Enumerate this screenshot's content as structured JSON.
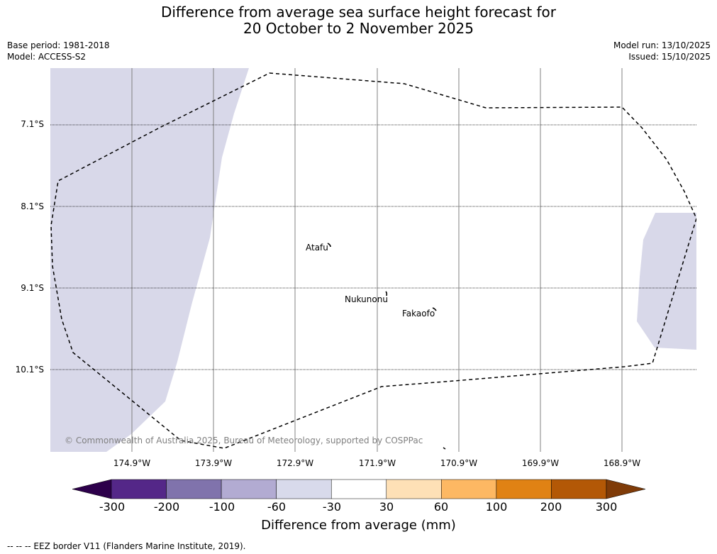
{
  "title": {
    "line1": "Difference from average sea surface height forecast for",
    "line2": "20 October to 2 November 2025"
  },
  "meta": {
    "base_period": "Base period: 1981-2018",
    "model": "Model: ACCESS-S2",
    "model_run": "Model run: 13/10/2025",
    "issued": "Issued: 15/10/2025"
  },
  "map": {
    "lat_labels": [
      "7.1°S",
      "8.1°S",
      "9.1°S",
      "10.1°S"
    ],
    "lon_labels": [
      "174.9°W",
      "173.9°W",
      "172.9°W",
      "171.9°W",
      "170.9°W",
      "169.9°W",
      "168.9°W"
    ],
    "places": [
      "Atafu",
      "Nukunonu",
      "Fakaofo"
    ],
    "copyright": "© Commonwealth of Australia 2025, Bureau of Meteorology, supported by COSPPac",
    "anomaly_fill_color": "#d8d8e9",
    "eez_color": "#000000"
  },
  "colorbar": {
    "label": "Difference from average (mm)",
    "ticks": [
      "-300",
      "-200",
      "-100",
      "-60",
      "-30",
      "30",
      "60",
      "100",
      "200",
      "300"
    ],
    "colors": [
      "#2d004b",
      "#542788",
      "#8073ac",
      "#b2abd2",
      "#d8daeb",
      "#ffffff",
      "#fee0b6",
      "#fdb863",
      "#e08214",
      "#b35806",
      "#7f3b08"
    ]
  },
  "legend": {
    "eez": "-- -- -- EEZ border V11 (Flanders Marine Institute, 2019)."
  }
}
